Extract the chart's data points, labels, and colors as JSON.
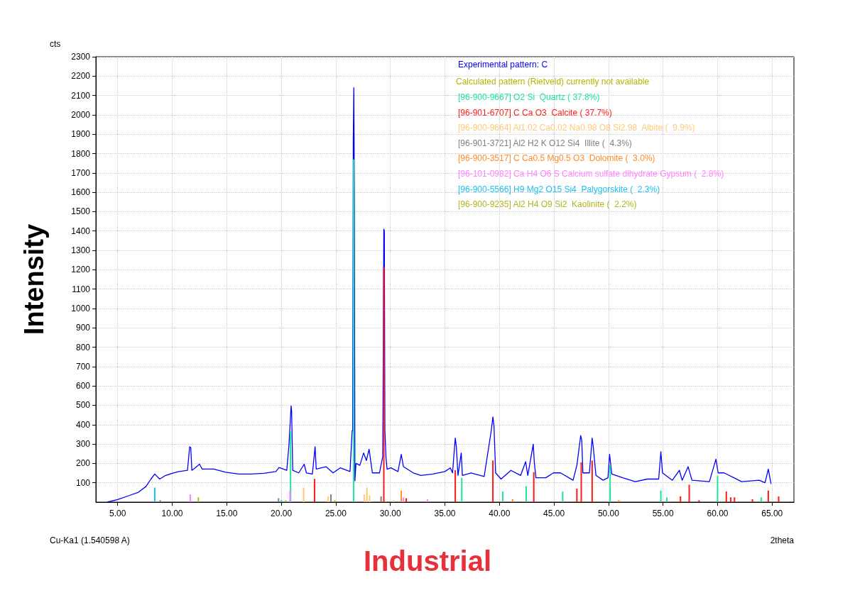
{
  "chart_data": {
    "type": "line",
    "title": "Industrial",
    "xlabel": "2theta",
    "ylabel": "Intensity",
    "annotations": [
      "cts",
      "Calculated pattern (Rietveld) currently not available",
      "Cu-Ka1 (1.540598 A)"
    ],
    "xlim": [
      3,
      67
    ],
    "xticks": [
      {
        "value": 5,
        "label": "5.00"
      },
      {
        "value": 10,
        "label": "10.00"
      },
      {
        "value": 15,
        "label": "15.00"
      },
      {
        "value": 20,
        "label": "20.00"
      },
      {
        "value": 25,
        "label": "25.00"
      },
      {
        "value": 30,
        "label": "30.00"
      },
      {
        "value": 35,
        "label": "35.00"
      },
      {
        "value": 40,
        "label": "40.00"
      },
      {
        "value": 45,
        "label": "45.00"
      },
      {
        "value": 50,
        "label": "50.00"
      },
      {
        "value": 55,
        "label": "55.00"
      },
      {
        "value": 60,
        "label": "60.00"
      },
      {
        "value": 65,
        "label": "65.00"
      }
    ],
    "ylim": [
      0,
      2300
    ],
    "yticks": [
      100,
      200,
      300,
      400,
      500,
      600,
      700,
      800,
      900,
      1000,
      1100,
      1200,
      1300,
      1400,
      1500,
      1600,
      1700,
      1800,
      1900,
      2000,
      2100,
      2200,
      2300
    ],
    "grid": true,
    "legend": "top right",
    "series": [
      {
        "name": "Experimental pattern: C",
        "color": "#0000ff",
        "x": [
          4.04,
          5.0,
          6.0,
          6.9,
          7.6,
          8.05,
          8.4,
          8.85,
          9.4,
          10,
          10.6,
          11.4,
          11.6,
          11.7,
          11.8,
          12.1,
          12.5,
          12.75,
          13.8,
          14.9,
          16.1,
          17.2,
          18.4,
          19.5,
          19.8,
          20.5,
          20.7,
          20.9,
          20.95,
          21.05,
          21.6,
          22.1,
          22.3,
          22.85,
          23.1,
          23.2,
          24.1,
          24.75,
          25.4,
          26.3,
          26.5,
          26.55,
          26.6,
          26.65,
          26.7,
          26.75,
          26.85,
          27.2,
          27.55,
          27.8,
          28.05,
          28.35,
          29.0,
          29.3,
          29.4,
          29.45,
          29.5,
          29.6,
          29.7,
          30.05,
          30.7,
          31.0,
          31.2,
          32.1,
          32.8,
          33.9,
          35.0,
          35.5,
          35.7,
          35.95,
          36.05,
          36.2,
          36.5,
          36.6,
          37.4,
          38.6,
          39.25,
          39.4,
          39.5,
          39.65,
          40.15,
          41.05,
          41.95,
          42.4,
          42.6,
          43.1,
          43.2,
          43.35,
          44.25,
          44.95,
          45.6,
          46.75,
          47.1,
          47.45,
          47.55,
          47.65,
          48.25,
          48.5,
          48.6,
          48.85,
          49.5,
          49.95,
          50.1,
          50.3,
          51.3,
          52.45,
          53.55,
          54.6,
          54.8,
          54.95,
          55.85,
          56.5,
          56.75,
          57.3,
          57.65,
          59.25,
          59.85,
          60.05,
          60.6,
          61.5,
          62.2,
          63.8,
          64.35,
          64.65,
          64.9
        ],
        "values": [
          0,
          13,
          33,
          51,
          81,
          119,
          145,
          119,
          138,
          149,
          158,
          164,
          286,
          282,
          164,
          177,
          196,
          171,
          171,
          154,
          145,
          145,
          149,
          158,
          179,
          164,
          292,
          497,
          467,
          164,
          151,
          196,
          151,
          145,
          286,
          171,
          183,
          151,
          177,
          158,
          369,
          369,
          1870,
          2140,
          1585,
          110,
          200,
          190,
          254,
          215,
          273,
          151,
          151,
          235,
          1410,
          1400,
          370,
          230,
          170,
          177,
          158,
          247,
          183,
          151,
          138,
          145,
          158,
          177,
          151,
          331,
          286,
          138,
          254,
          138,
          151,
          132,
          369,
          440,
          395,
          151,
          119,
          164,
          138,
          209,
          138,
          299,
          203,
          126,
          126,
          151,
          151,
          113,
          190,
          344,
          318,
          151,
          151,
          331,
          286,
          138,
          113,
          126,
          247,
          145,
          126,
          106,
          119,
          119,
          260,
          151,
          113,
          164,
          113,
          183,
          113,
          106,
          222,
          151,
          151,
          126,
          106,
          113,
          100,
          171,
          94
        ]
      },
      {
        "name": "[96-900-9667] O2 Si  Quartz ( 37.8%)",
        "color": "#1de39b",
        "type": "bar",
        "x": [
          20.85,
          26.64,
          36.55,
          40.3,
          42.45,
          45.8,
          50.15,
          54.8,
          55.35,
          60.0,
          64.0
        ],
        "values": [
          365,
          1770,
          125,
          55,
          83,
          55,
          190,
          60,
          25,
          135,
          25
        ]
      },
      {
        "name": "[96-901-6707] C Ca O3  Calcite ( 37.7%)",
        "color": "#ff1a1a",
        "type": "bar",
        "x": [
          23.05,
          29.4,
          31.45,
          35.95,
          39.4,
          43.15,
          47.1,
          47.5,
          48.5,
          56.6,
          57.4,
          58.3,
          60.8,
          61.2,
          61.55,
          63.2,
          64.65,
          65.6
        ],
        "values": [
          120,
          1215,
          20,
          165,
          215,
          155,
          70,
          205,
          215,
          30,
          90,
          10,
          55,
          25,
          25,
          15,
          60,
          30
        ]
      },
      {
        "name": "[96-900-9664] Al1.02 Ca0.02 Na0.98 O8 Si2.98  Albite (  9.9%)",
        "color": "#ffc978",
        "type": "bar",
        "x": [
          22.05,
          24.3,
          27.6,
          27.85,
          28.1,
          30.3
        ],
        "values": [
          75,
          30,
          40,
          75,
          35,
          10
        ]
      },
      {
        "name": "[96-901-3721] Al2 H2 K O12 Si4  Illite (  4.3%)",
        "color": "#808080",
        "type": "bar",
        "x": [
          8.9,
          19.75,
          24.55,
          29.15
        ],
        "values": [
          10,
          20,
          40,
          30
        ]
      },
      {
        "name": "[96-900-3517] C Ca0.5 Mg0.5 O3  Dolomite (  3.0%)",
        "color": "#ff8c28",
        "type": "bar",
        "x": [
          31.0,
          41.2,
          50.95
        ],
        "values": [
          60,
          15,
          10
        ]
      },
      {
        "name": "[96-101-0982] Ca H4 O6 S Calcium sulfate dihydrate Gypsum (  2.8%)",
        "color": "#ff80ff",
        "type": "bar",
        "x": [
          11.65,
          20.8,
          31.2,
          33.4
        ],
        "values": [
          40,
          60,
          25,
          15
        ]
      },
      {
        "name": "[96-900-5566] H9 Mg2 O15 Si4  Palygorskite (  2.3%)",
        "color": "#1ec0f0",
        "type": "bar",
        "x": [
          8.4,
          20.0
        ],
        "values": [
          75,
          10
        ]
      },
      {
        "name": "[96-900-9235] Al2 H4 O9 Si2  Kaolinite (  2.2%)",
        "color": "#b4b41e",
        "type": "bar",
        "x": [
          12.4,
          20.4,
          24.9
        ],
        "values": [
          25,
          10,
          10
        ]
      }
    ]
  }
}
